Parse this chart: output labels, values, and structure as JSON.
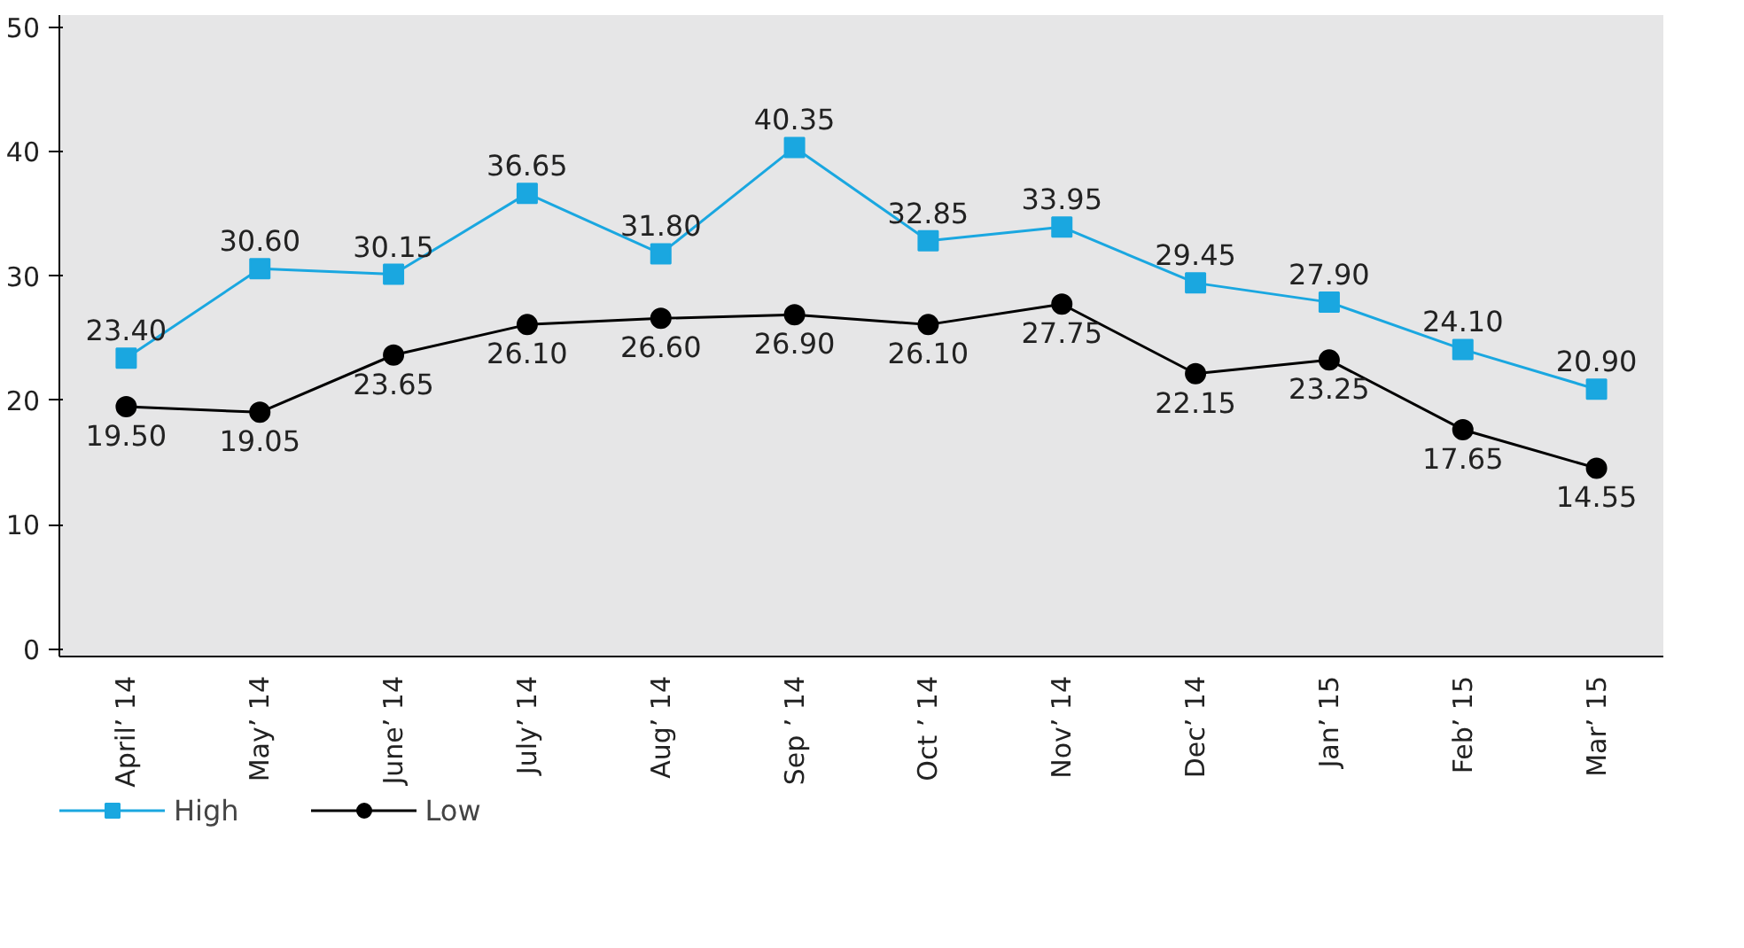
{
  "chart_data": {
    "type": "line",
    "categories": [
      "April’ 14",
      "May’ 14",
      "June’ 14",
      "July’ 14",
      "Aug’ 14",
      "Sep ’ 14",
      "Oct ’ 14",
      "Nov’ 14",
      "Dec’ 14",
      "Jan’ 15",
      "Feb’ 15",
      "Mar’ 15"
    ],
    "series": [
      {
        "name": "High",
        "color": "#1aa7e0",
        "marker": "square",
        "values": [
          23.4,
          30.6,
          30.15,
          36.65,
          31.8,
          40.35,
          32.85,
          33.95,
          29.45,
          27.9,
          24.1,
          20.9
        ],
        "value_labels": [
          "23.40",
          "30.60",
          "30.15",
          "36.65",
          "31.80",
          "40.35",
          "32.85",
          "33.95",
          "29.45",
          "27.90",
          "24.10",
          "20.90"
        ]
      },
      {
        "name": "Low",
        "color": "#000000",
        "marker": "circle",
        "values": [
          19.5,
          19.05,
          23.65,
          26.1,
          26.6,
          26.9,
          26.1,
          27.75,
          22.15,
          23.25,
          17.65,
          14.55
        ],
        "value_labels": [
          "19.50",
          "19.05",
          "23.65",
          "26.10",
          "26.60",
          "26.90",
          "26.10",
          "27.75",
          "22.15",
          "23.25",
          "17.65",
          "14.55"
        ]
      }
    ],
    "ylim": [
      -0.6,
      51
    ],
    "yticks": [
      0,
      10,
      20,
      30,
      40,
      50
    ],
    "legend": "bottom left",
    "line_style": "solid"
  }
}
